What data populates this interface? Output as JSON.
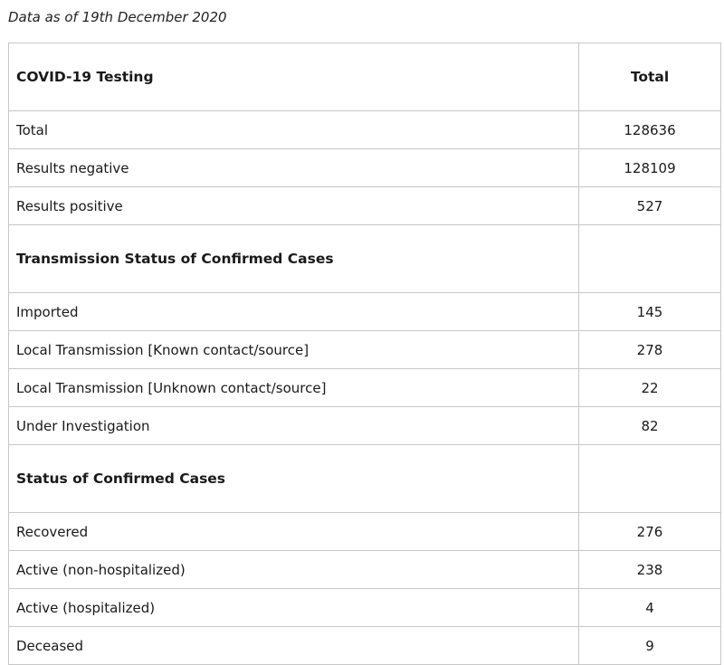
{
  "caption": "Data as of 19th December 2020",
  "table": {
    "sections": [
      {
        "title": "COVID-19 Testing",
        "value_header": "Total",
        "rows": [
          {
            "label": "Total",
            "value": "128636"
          },
          {
            "label": "Results negative",
            "value": "128109"
          },
          {
            "label": "Results positive",
            "value": "527"
          }
        ]
      },
      {
        "title": "Transmission Status of Confirmed Cases",
        "value_header": "",
        "rows": [
          {
            "label": "Imported",
            "value": "145"
          },
          {
            "label": "Local Transmission [Known contact/source]",
            "value": "278"
          },
          {
            "label": "Local Transmission [Unknown contact/source]",
            "value": "22"
          },
          {
            "label": "Under Investigation",
            "value": "82"
          }
        ]
      },
      {
        "title": "Status of Confirmed Cases",
        "value_header": "",
        "rows": [
          {
            "label": "Recovered",
            "value": "276"
          },
          {
            "label": "Active (non-hospitalized)",
            "value": "238"
          },
          {
            "label": "Active (hospitalized)",
            "value": "4"
          },
          {
            "label": "Deceased",
            "value": "9"
          }
        ]
      }
    ]
  }
}
